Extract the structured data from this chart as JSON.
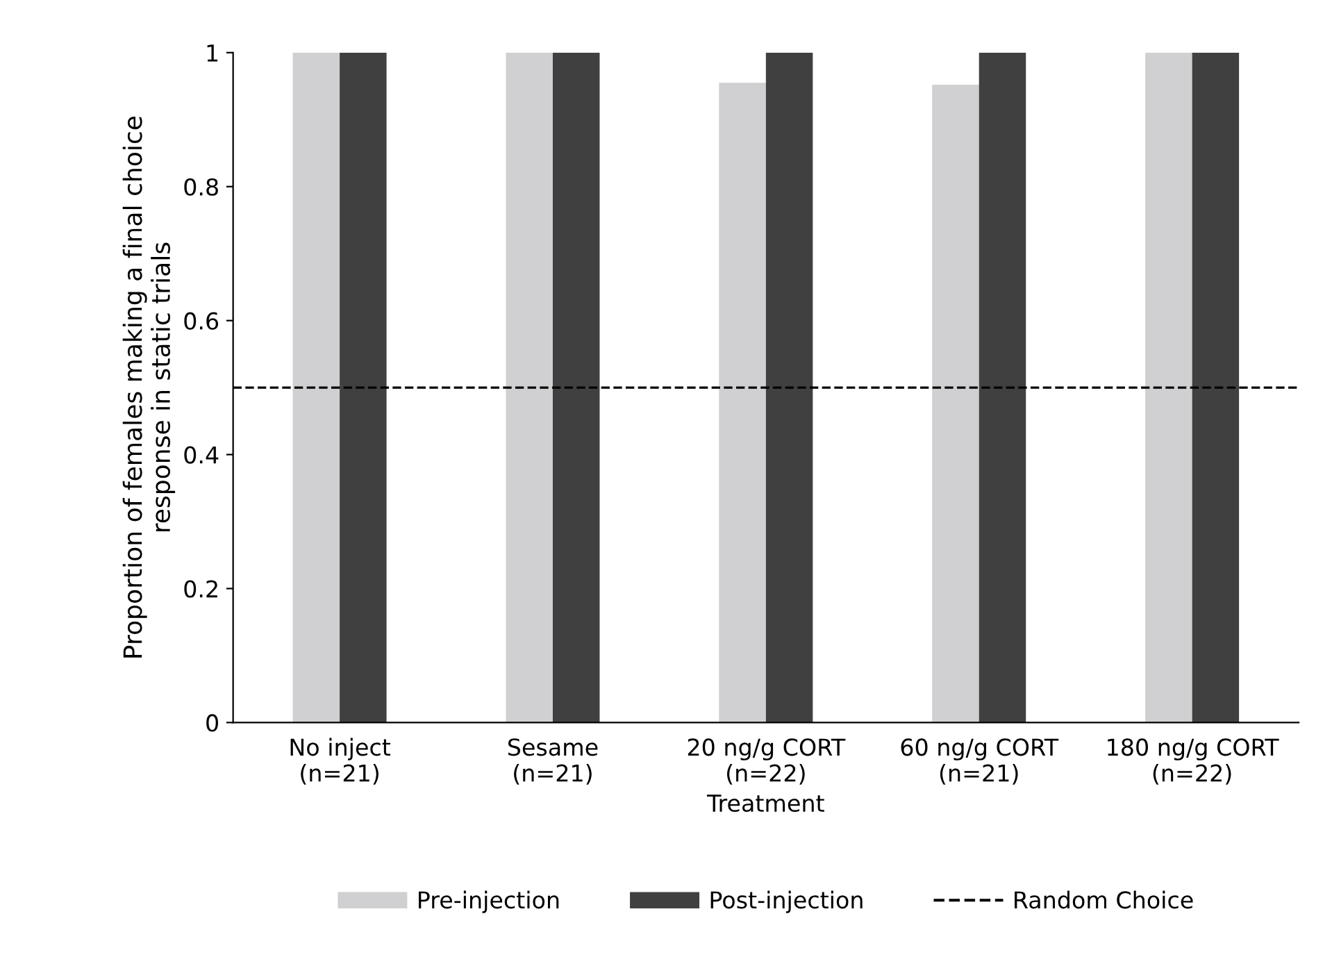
{
  "chart_data": {
    "type": "bar",
    "xlabel": "Treatment",
    "ylabel": "Proportion of females making a final choice\nresponse in static trials",
    "categories": [
      "No inject\n(n=21)",
      "Sesame\n(n=21)",
      "20 ng/g CORT\n(n=22)",
      "60 ng/g CORT\n(n=21)",
      "180 ng/g CORT\n(n=22)"
    ],
    "series": [
      {
        "name": "Pre-injection",
        "color": "#d0d0d2",
        "values": [
          1,
          1,
          0.955,
          0.952,
          1
        ]
      },
      {
        "name": "Post-injection",
        "color": "#404040",
        "values": [
          1,
          1,
          1,
          1,
          1
        ]
      }
    ],
    "ylim": [
      0,
      1
    ],
    "yticks": [
      0,
      0.2,
      0.4,
      0.6,
      0.8,
      1
    ],
    "ref_lines": [
      {
        "axis": "y",
        "value": 0.5,
        "label": "Random Choice",
        "color": "#000000",
        "line_style": "dashed"
      }
    ],
    "grid": false,
    "legend": "bottom"
  }
}
